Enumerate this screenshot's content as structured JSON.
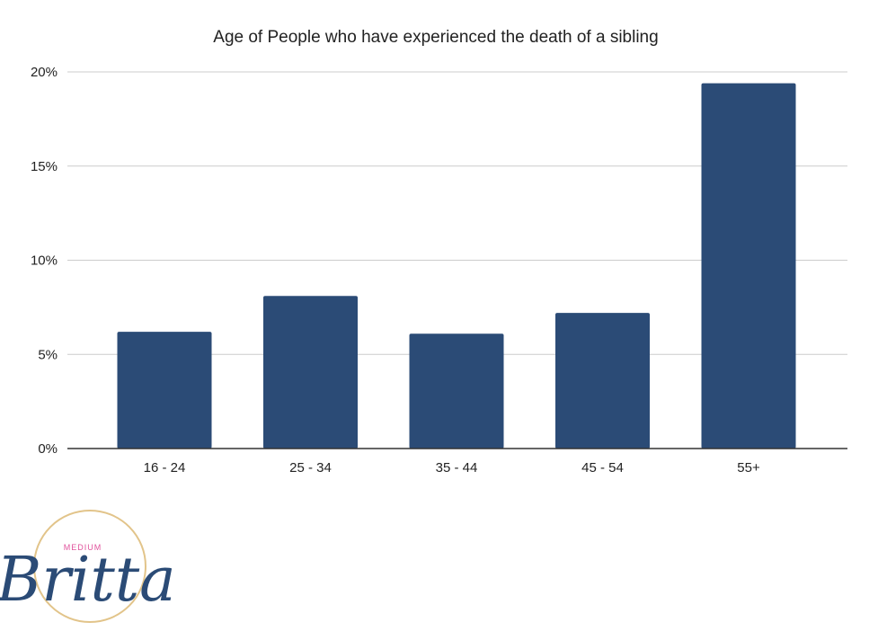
{
  "chart_data": {
    "type": "bar",
    "title": "Age of People who have experienced the death of a sibling",
    "xlabel": "",
    "ylabel": "",
    "categories": [
      "16 - 24",
      "25 - 34",
      "35 - 44",
      "45 - 54",
      "55+"
    ],
    "values": [
      6.2,
      8.1,
      6.1,
      7.2,
      19.4
    ],
    "ylim": [
      0,
      20
    ],
    "yticks": [
      0,
      5,
      10,
      15,
      20
    ],
    "ytick_labels": [
      "0%",
      "5%",
      "10%",
      "15%",
      "20%"
    ],
    "grid": true,
    "legend": "none",
    "bar_color": "#2b4b76"
  },
  "logo": {
    "top_text": "MEDIUM",
    "name": "Britta",
    "ring_color": "#e2c48a",
    "name_color": "#2b4b76",
    "top_text_color": "#e0529c"
  }
}
